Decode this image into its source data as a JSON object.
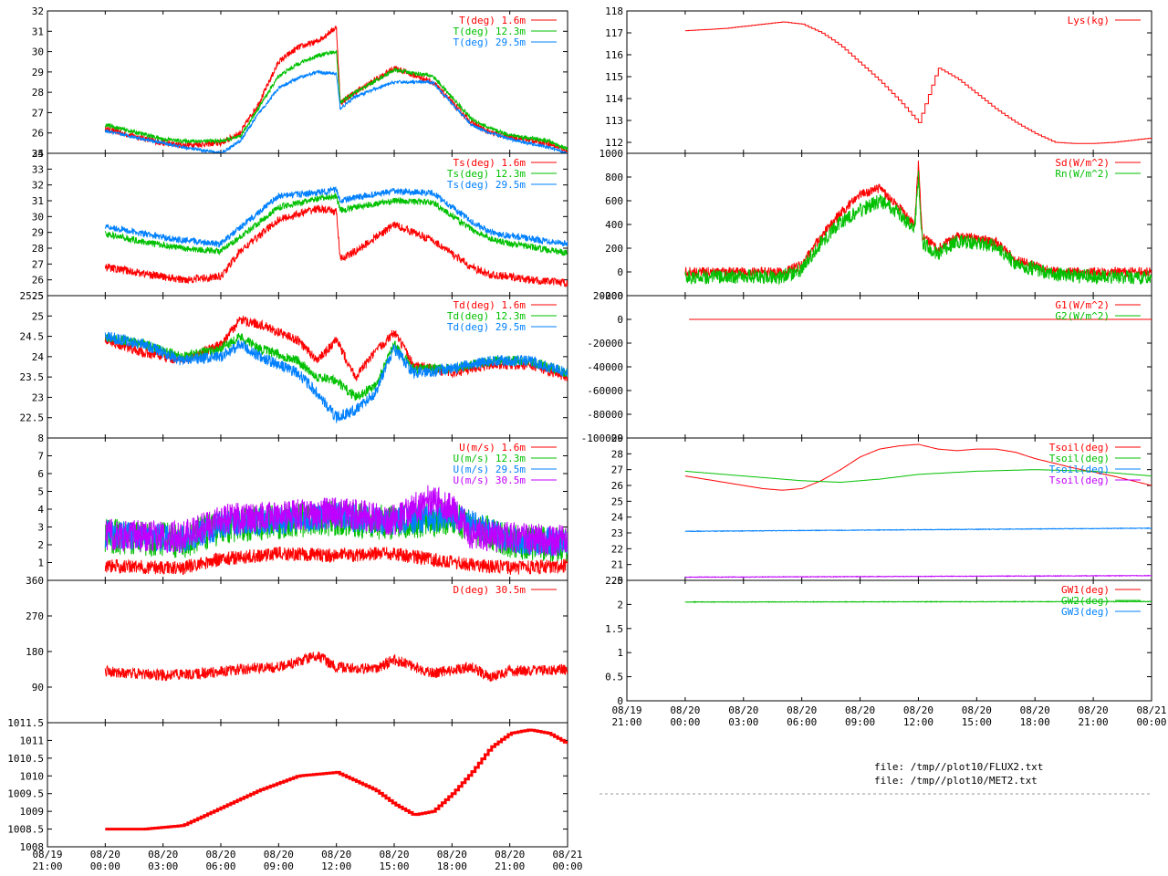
{
  "x_ticks": [
    {
      "d": "08/19",
      "t": "21:00"
    },
    {
      "d": "08/20",
      "t": "00:00"
    },
    {
      "d": "08/20",
      "t": "03:00"
    },
    {
      "d": "08/20",
      "t": "06:00"
    },
    {
      "d": "08/20",
      "t": "09:00"
    },
    {
      "d": "08/20",
      "t": "12:00"
    },
    {
      "d": "08/20",
      "t": "15:00"
    },
    {
      "d": "08/20",
      "t": "18:00"
    },
    {
      "d": "08/20",
      "t": "21:00"
    },
    {
      "d": "08/21",
      "t": "00:00"
    }
  ],
  "files": [
    "file: /tmp//plot10/FLUX2.txt",
    "file: /tmp//plot10/MET2.txt"
  ],
  "colors": {
    "red": "#ff0000",
    "green": "#00c000",
    "blue": "#0080ff",
    "purple": "#c000ff"
  },
  "chart_data": [
    {
      "id": "air-temp",
      "type": "line",
      "column": "left",
      "ylim": [
        25,
        32
      ],
      "yticks": [
        "25",
        "26",
        "27",
        "28",
        "29",
        "30",
        "31",
        "32"
      ],
      "series": [
        {
          "name": "T(deg)  1.6m",
          "color": "#ff0000",
          "noise": 0.15,
          "x": [
            0,
            3,
            4,
            6,
            7,
            8,
            9,
            10,
            11,
            12,
            12.2,
            13,
            15,
            17,
            19,
            20,
            21,
            23,
            24
          ],
          "y": [
            26.2,
            25.5,
            25.4,
            25.5,
            26,
            27.5,
            29.5,
            30.2,
            30.5,
            31.2,
            27.5,
            28,
            29.2,
            28.5,
            26.5,
            26,
            25.8,
            25.5,
            25.1
          ]
        },
        {
          "name": "T(deg) 12.3m",
          "color": "#00c000",
          "noise": 0.1,
          "x": [
            0,
            3,
            4,
            6,
            7,
            8,
            9,
            10,
            11,
            12,
            12.2,
            13,
            15,
            17,
            19,
            20,
            21,
            23,
            24
          ],
          "y": [
            26.4,
            25.7,
            25.6,
            25.6,
            25.8,
            27.3,
            28.8,
            29.4,
            29.8,
            30,
            27.5,
            28,
            29.1,
            28.8,
            26.7,
            26.2,
            25.9,
            25.6,
            25.2
          ]
        },
        {
          "name": "T(deg) 29.5m",
          "color": "#0080ff",
          "noise": 0.08,
          "x": [
            0,
            3,
            4,
            6,
            7,
            8,
            9,
            10,
            11,
            12,
            12.2,
            13,
            15,
            17,
            19,
            20,
            21,
            23,
            24
          ],
          "y": [
            26.1,
            25.5,
            25.3,
            25,
            25.6,
            27,
            28.2,
            28.7,
            29,
            28.9,
            27.2,
            27.8,
            28.5,
            28.5,
            26.4,
            26,
            25.7,
            25.3,
            25
          ]
        }
      ]
    },
    {
      "id": "surface-temp",
      "type": "line",
      "column": "left",
      "ylim": [
        25,
        34
      ],
      "yticks": [
        "25",
        "26",
        "27",
        "28",
        "29",
        "30",
        "31",
        "32",
        "33",
        "34"
      ],
      "series": [
        {
          "name": "Ts(deg)  1.6m",
          "color": "#ff0000",
          "noise": 0.25,
          "x": [
            0,
            2,
            4,
            6,
            7,
            9,
            11,
            12,
            12.2,
            13,
            15,
            17,
            19,
            20,
            21,
            22,
            24
          ],
          "y": [
            26.8,
            26.4,
            26,
            26.2,
            27.8,
            29.8,
            30.5,
            30.3,
            27.3,
            27.8,
            29.5,
            28.5,
            26.8,
            26.3,
            26.2,
            26,
            25.8
          ]
        },
        {
          "name": "Ts(deg) 12.3m",
          "color": "#00c000",
          "noise": 0.2,
          "x": [
            0,
            2,
            4,
            6,
            7,
            9,
            11,
            12,
            12.2,
            13,
            15,
            17,
            19,
            20,
            21,
            22,
            24
          ],
          "y": [
            28.9,
            28.4,
            28,
            27.8,
            28.7,
            30.6,
            31.1,
            31.3,
            30.4,
            30.6,
            31,
            30.9,
            29.2,
            28.6,
            28.3,
            28.1,
            27.7
          ]
        },
        {
          "name": "Ts(deg) 29.5m",
          "color": "#0080ff",
          "noise": 0.2,
          "x": [
            0,
            2,
            4,
            6,
            7,
            9,
            11,
            12,
            12.2,
            13,
            15,
            17,
            19,
            20,
            21,
            22,
            24
          ],
          "y": [
            29.4,
            28.9,
            28.5,
            28.3,
            29.3,
            31.3,
            31.5,
            31.7,
            31,
            31.2,
            31.6,
            31.5,
            29.7,
            29,
            28.8,
            28.6,
            28.3
          ]
        }
      ]
    },
    {
      "id": "dew-point",
      "type": "line",
      "column": "left",
      "ylim": [
        22,
        25.5
      ],
      "yticks": [
        "22.5",
        "23",
        "23.5",
        "24",
        "24.5",
        "25",
        "25.5"
      ],
      "series": [
        {
          "name": "Td(deg)  1.6m",
          "color": "#ff0000",
          "noise": 0.12,
          "x": [
            0,
            2,
            4,
            6,
            7,
            8,
            10,
            11,
            12,
            13,
            14,
            15,
            16,
            18,
            20,
            22,
            24
          ],
          "y": [
            24.4,
            24.1,
            23.9,
            24.3,
            24.9,
            24.8,
            24.4,
            23.9,
            24.4,
            23.5,
            24.1,
            24.6,
            23.8,
            23.6,
            23.8,
            23.8,
            23.5
          ]
        },
        {
          "name": "Td(deg) 12.3m",
          "color": "#00c000",
          "noise": 0.12,
          "x": [
            0,
            2,
            4,
            6,
            7,
            8,
            10,
            11,
            12,
            13,
            14,
            15,
            16,
            18,
            20,
            22,
            24
          ],
          "y": [
            24.5,
            24.3,
            24,
            24.2,
            24.5,
            24.2,
            23.9,
            23.5,
            23.4,
            23,
            23.3,
            24.3,
            23.7,
            23.7,
            23.9,
            23.9,
            23.6
          ]
        },
        {
          "name": "Td(deg) 29.5m",
          "color": "#0080ff",
          "noise": 0.14,
          "x": [
            0,
            2,
            4,
            6,
            7,
            8,
            10,
            11,
            12,
            13,
            14,
            15,
            16,
            18,
            20,
            22,
            24
          ],
          "y": [
            24.5,
            24.3,
            23.9,
            24,
            24.3,
            24,
            23.6,
            23.1,
            22.5,
            22.7,
            23.1,
            24.2,
            23.6,
            23.7,
            23.9,
            23.9,
            23.6
          ]
        }
      ]
    },
    {
      "id": "wind-speed",
      "type": "line",
      "column": "left",
      "ylim": [
        0,
        8
      ],
      "yticks": [
        "1",
        "2",
        "3",
        "4",
        "5",
        "6",
        "7",
        "8"
      ],
      "series": [
        {
          "name": "U(m/s)  1.6m",
          "color": "#ff0000",
          "noise": 0.4,
          "x": [
            0,
            4,
            6,
            9,
            12,
            15,
            18,
            21,
            24
          ],
          "y": [
            0.8,
            0.7,
            1.2,
            1.5,
            1.4,
            1.5,
            1,
            0.7,
            0.8
          ]
        },
        {
          "name": "U(m/s) 12.3m",
          "color": "#00c000",
          "noise": 1.0,
          "x": [
            0,
            4,
            6,
            9,
            12,
            15,
            18,
            21,
            24
          ],
          "y": [
            2.5,
            2.2,
            3,
            3.3,
            3.5,
            3.2,
            3.5,
            2.2,
            2
          ]
        },
        {
          "name": "U(m/s) 29.5m",
          "color": "#0080ff",
          "noise": 0.8,
          "x": [
            0,
            4,
            6,
            9,
            12,
            15,
            18,
            21,
            24
          ],
          "y": [
            2.6,
            2.3,
            3.1,
            3.4,
            3.6,
            3.3,
            3.6,
            2.3,
            2.1
          ]
        },
        {
          "name": "U(m/s) 30.5m",
          "color": "#c000ff",
          "noise": 0.9,
          "x": [
            0,
            4,
            6,
            9,
            12,
            15,
            17,
            18,
            19,
            21,
            24
          ],
          "y": [
            2.6,
            2.4,
            3.4,
            3.6,
            3.8,
            3.4,
            4.6,
            4,
            2.6,
            2.4,
            2.2
          ]
        }
      ]
    },
    {
      "id": "wind-direction",
      "type": "line",
      "column": "left",
      "ylim": [
        0,
        360
      ],
      "yticks": [
        "90",
        "180",
        "270",
        "360"
      ],
      "series": [
        {
          "name": "D(deg)  30.5m",
          "color": "#ff0000",
          "noise": 14,
          "x": [
            0,
            3,
            5,
            7,
            9,
            11,
            12,
            14,
            15,
            17,
            19,
            20,
            21,
            24
          ],
          "y": [
            130,
            120,
            125,
            135,
            140,
            170,
            140,
            135,
            160,
            125,
            140,
            115,
            130,
            135
          ]
        }
      ]
    },
    {
      "id": "pressure",
      "type": "line",
      "column": "left",
      "ylim": [
        1008,
        1011.5
      ],
      "yticks": [
        "1008",
        "1008.5",
        "1009",
        "1009.5",
        "1010",
        "1010.5",
        "1011",
        "1011.5"
      ],
      "series": [
        {
          "name": "",
          "color": "#ff0000",
          "noise": 0,
          "x": [
            0,
            2,
            4,
            6,
            8,
            10,
            12,
            14,
            15,
            16,
            17,
            18,
            19,
            20,
            21,
            22,
            23,
            24
          ],
          "y": [
            1008.5,
            1008.5,
            1008.6,
            1009.1,
            1009.6,
            1010.0,
            1010.1,
            1009.6,
            1009.2,
            1008.9,
            1009.0,
            1009.5,
            1010.1,
            1010.8,
            1011.2,
            1011.3,
            1011.2,
            1010.9
          ]
        }
      ]
    },
    {
      "id": "lysimeter",
      "type": "line",
      "column": "right",
      "ylim": [
        111.5,
        118
      ],
      "yticks": [
        "112",
        "113",
        "114",
        "115",
        "116",
        "117",
        "118"
      ],
      "series": [
        {
          "name": "Lys(kg)",
          "color": "#ff0000",
          "noise": 0,
          "x": [
            0,
            2,
            4,
            5,
            6,
            7,
            8,
            9,
            10,
            11,
            12,
            13,
            14,
            15,
            16,
            17,
            18,
            19,
            20,
            21,
            22,
            23,
            24
          ],
          "y": [
            117.1,
            117.2,
            117.4,
            117.5,
            117.4,
            117.0,
            116.4,
            115.6,
            114.8,
            113.9,
            112.9,
            115.4,
            114.9,
            114.2,
            113.5,
            112.9,
            112.4,
            112.0,
            111.95,
            111.95,
            112.0,
            112.1,
            112.2
          ]
        }
      ]
    },
    {
      "id": "radiation",
      "type": "line",
      "column": "right",
      "ylim": [
        -200,
        1000
      ],
      "yticks": [
        "-200",
        "0",
        "200",
        "400",
        "600",
        "800",
        "1000"
      ],
      "series": [
        {
          "name": "Sd(W/m^2)",
          "color": "#ff0000",
          "noise": 40,
          "x": [
            0,
            3,
            4,
            5,
            6,
            7,
            8,
            9,
            10,
            11,
            11.8,
            12,
            12.2,
            13,
            14,
            15,
            16,
            17,
            19,
            21,
            24
          ],
          "y": [
            0,
            0,
            0,
            0,
            60,
            300,
            500,
            650,
            700,
            550,
            400,
            900,
            300,
            200,
            300,
            280,
            250,
            100,
            5,
            0,
            0
          ]
        },
        {
          "name": "Rn(W/m^2)",
          "color": "#00c000",
          "noise": 60,
          "x": [
            0,
            3,
            4,
            5,
            6,
            7,
            8,
            9,
            10,
            11,
            11.8,
            12,
            12.2,
            13,
            14,
            15,
            16,
            17,
            19,
            21,
            24
          ],
          "y": [
            -40,
            -40,
            -40,
            -40,
            20,
            250,
            420,
            520,
            600,
            500,
            350,
            800,
            250,
            150,
            260,
            240,
            220,
            70,
            -20,
            -40,
            -50
          ]
        }
      ]
    },
    {
      "id": "soil-heat-flux",
      "type": "line",
      "column": "right",
      "ylim": [
        -100000,
        20000
      ],
      "yticks": [
        "-100000",
        "-80000",
        "-60000",
        "-40000",
        "-20000",
        "0",
        "20000"
      ],
      "series": [
        {
          "name": "G1(W/m^2)",
          "color": "#ff0000",
          "noise": 0,
          "x": [
            0.2,
            24
          ],
          "y": [
            0,
            0
          ]
        },
        {
          "name": "G2(W/m^2)",
          "color": "#00c000",
          "noise": 0,
          "x": [],
          "y": []
        }
      ]
    },
    {
      "id": "soil-temp",
      "type": "line",
      "column": "right",
      "ylim": [
        20,
        29
      ],
      "yticks": [
        "20",
        "21",
        "22",
        "23",
        "24",
        "25",
        "26",
        "27",
        "28",
        "29"
      ],
      "series": [
        {
          "name": "Tsoil(deg)",
          "color": "#ff0000",
          "noise": 0,
          "x": [
            0,
            2,
            4,
            5,
            6,
            7,
            8,
            9,
            10,
            11,
            12,
            13,
            14,
            15,
            16,
            17,
            18,
            20,
            22,
            24
          ],
          "y": [
            26.6,
            26.2,
            25.8,
            25.7,
            25.8,
            26.3,
            27.0,
            27.8,
            28.3,
            28.5,
            28.6,
            28.3,
            28.2,
            28.3,
            28.3,
            28.1,
            27.7,
            27.1,
            26.6,
            26.0
          ]
        },
        {
          "name": "Tsoil(deg)",
          "color": "#00c000",
          "noise": 0,
          "x": [
            0,
            3,
            6,
            8,
            10,
            12,
            15,
            18,
            21,
            24
          ],
          "y": [
            26.9,
            26.6,
            26.3,
            26.2,
            26.4,
            26.7,
            26.9,
            27.0,
            26.9,
            26.6
          ]
        },
        {
          "name": "Tsoil(deg)",
          "color": "#0080ff",
          "noise": 0.02,
          "x": [
            0,
            24
          ],
          "y": [
            23.1,
            23.3
          ]
        },
        {
          "name": "Tsoil(deg)",
          "color": "#c000ff",
          "noise": 0.02,
          "x": [
            0,
            24
          ],
          "y": [
            20.2,
            20.3
          ]
        }
      ]
    },
    {
      "id": "ground-water",
      "type": "line",
      "column": "right",
      "ylim": [
        0,
        2.5
      ],
      "yticks": [
        "0",
        "0.5",
        "1",
        "1.5",
        "2",
        "2.5"
      ],
      "series": [
        {
          "name": "GW1(deg)",
          "color": "#ff0000",
          "noise": 0,
          "x": [],
          "y": []
        },
        {
          "name": "GW2(deg)",
          "color": "#00c000",
          "noise": 0.006,
          "x": [
            0,
            24
          ],
          "y": [
            2.05,
            2.06
          ]
        },
        {
          "name": "GW3(deg)",
          "color": "#0080ff",
          "noise": 0,
          "x": [],
          "y": []
        }
      ]
    }
  ]
}
